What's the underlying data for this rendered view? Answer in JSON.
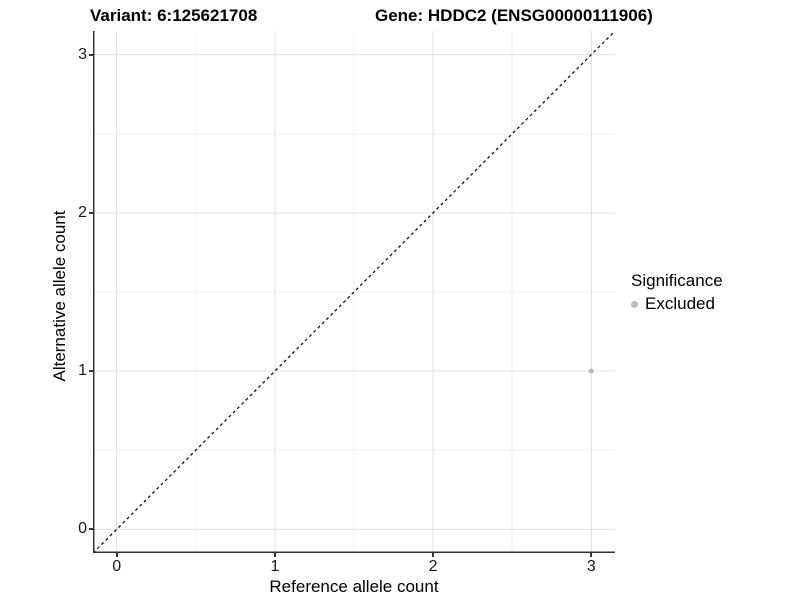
{
  "figure": {
    "title_left": "Variant: 6:125621708",
    "title_right": "Gene: HDDC2 (ENSG00000111906)"
  },
  "axes": {
    "x": {
      "title": "Reference allele count"
    },
    "y": {
      "title": "Alternative allele count"
    }
  },
  "legend": {
    "title": "Significance",
    "items": [
      {
        "label": "Excluded",
        "color": "#bebebe"
      }
    ]
  },
  "colors": {
    "point": "#bebebe",
    "grid_major": "#e3e3e3",
    "grid_minor": "#f1f1f1",
    "axis_line": "#333333",
    "diagonal_line": "#000000",
    "tick_text": "#1a1a1a"
  },
  "chart_data": {
    "type": "scatter",
    "title": "Variant: 6:125621708 / Gene: HDDC2 (ENSG00000111906)",
    "xlabel": "Reference allele count",
    "ylabel": "Alternative allele count",
    "xlim": [
      -0.15,
      3.15
    ],
    "ylim": [
      -0.15,
      3.15
    ],
    "x_ticks": {
      "values": [
        0,
        1,
        2,
        3
      ],
      "labels": [
        "0",
        "1",
        "2",
        "3"
      ]
    },
    "y_ticks": {
      "values": [
        0,
        1,
        2,
        3
      ],
      "labels": [
        "0",
        "1",
        "2",
        "3"
      ]
    },
    "minor_grid": [
      0.5,
      1.5,
      2.5
    ],
    "series": [
      {
        "name": "Excluded",
        "color": "#bebebe",
        "points": [
          {
            "x": 3,
            "y": 1
          }
        ]
      }
    ],
    "reference_line": {
      "style": "dashed",
      "x1": -0.15,
      "y1": -0.15,
      "x2": 3.15,
      "y2": 3.15
    },
    "grid": true,
    "legend_position": "right"
  }
}
